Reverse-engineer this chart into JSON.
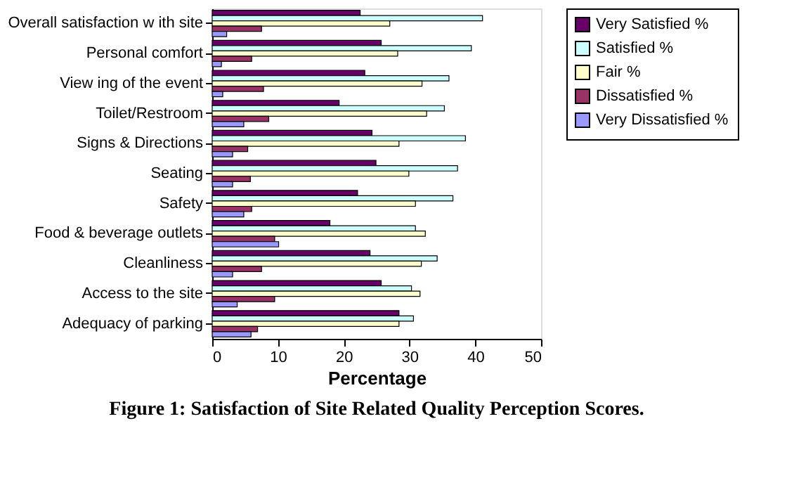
{
  "chart_data": {
    "type": "bar",
    "orientation": "horizontal",
    "title": "Figure 1: Satisfaction of Site Related Quality Perception Scores.",
    "xlabel": "Percentage",
    "categories": [
      "Overall satisfaction w ith site",
      "Personal comfort",
      "View ing of the event",
      "Toilet/Restroom",
      "Signs & Directions",
      "Seating",
      "Safety",
      "Food & beverage outlets",
      "Cleanliness",
      "Access to the site",
      "Adequacy of parking"
    ],
    "series": [
      {
        "name": "Very Satisfied %",
        "color": "#660066",
        "values": [
          22.5,
          25.7,
          23.2,
          19.3,
          24.3,
          24.9,
          22.1,
          17.9,
          24.0,
          25.7,
          28.4
        ]
      },
      {
        "name": "Satisfied %",
        "color": "#ccffff",
        "values": [
          41.1,
          39.4,
          36.0,
          35.3,
          38.5,
          37.3,
          36.6,
          30.9,
          34.2,
          30.3,
          30.6
        ]
      },
      {
        "name": "Fair %",
        "color": "#ffffcc",
        "values": [
          27.0,
          28.2,
          31.9,
          32.6,
          28.4,
          29.9,
          30.9,
          32.4,
          31.8,
          31.6,
          28.4
        ]
      },
      {
        "name": "Dissatisfied %",
        "color": "#993366",
        "values": [
          7.5,
          6.0,
          7.8,
          8.6,
          5.4,
          5.8,
          6.0,
          9.5,
          7.5,
          9.5,
          6.9
        ]
      },
      {
        "name": "Very Dissatisfied %",
        "color": "#9999ff",
        "values": [
          2.2,
          1.4,
          1.6,
          4.8,
          3.1,
          3.1,
          4.8,
          10.1,
          3.1,
          3.8,
          5.9
        ]
      }
    ],
    "xlim": [
      0,
      50
    ],
    "xticks": [
      0,
      10,
      20,
      30,
      40,
      50
    ],
    "grid": false,
    "legend": "right"
  }
}
